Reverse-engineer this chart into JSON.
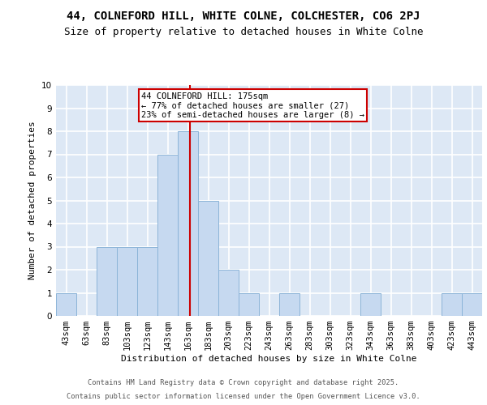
{
  "title1": "44, COLNEFORD HILL, WHITE COLNE, COLCHESTER, CO6 2PJ",
  "title2": "Size of property relative to detached houses in White Colne",
  "xlabel": "Distribution of detached houses by size in White Colne",
  "ylabel": "Number of detached properties",
  "bar_edges": [
    43,
    63,
    83,
    103,
    123,
    143,
    163,
    183,
    203,
    223,
    243,
    263,
    283,
    303,
    323,
    343,
    363,
    383,
    403,
    423,
    443,
    463
  ],
  "bar_heights": [
    1,
    0,
    3,
    3,
    3,
    7,
    8,
    5,
    2,
    1,
    0,
    1,
    0,
    0,
    0,
    1,
    0,
    0,
    0,
    1,
    1
  ],
  "bar_color": "#c6d9f0",
  "bar_edge_color": "#8cb4d8",
  "ylim": [
    0,
    10
  ],
  "yticks": [
    0,
    1,
    2,
    3,
    4,
    5,
    6,
    7,
    8,
    9,
    10
  ],
  "vline_x": 175,
  "vline_color": "#cc0000",
  "annotation_text": "44 COLNEFORD HILL: 175sqm\n← 77% of detached houses are smaller (27)\n23% of semi-detached houses are larger (8) →",
  "annotation_box_color": "#ffffff",
  "annotation_box_edge": "#cc0000",
  "annotation_fontsize": 7.5,
  "title1_fontsize": 10,
  "title2_fontsize": 9,
  "axis_label_fontsize": 8,
  "tick_label_fontsize": 7.5,
  "ylabel_fontsize": 8,
  "footer1": "Contains HM Land Registry data © Crown copyright and database right 2025.",
  "footer2": "Contains public sector information licensed under the Open Government Licence v3.0.",
  "background_color": "#dde8f5",
  "grid_color": "#ffffff",
  "fig_bg_color": "#ffffff"
}
